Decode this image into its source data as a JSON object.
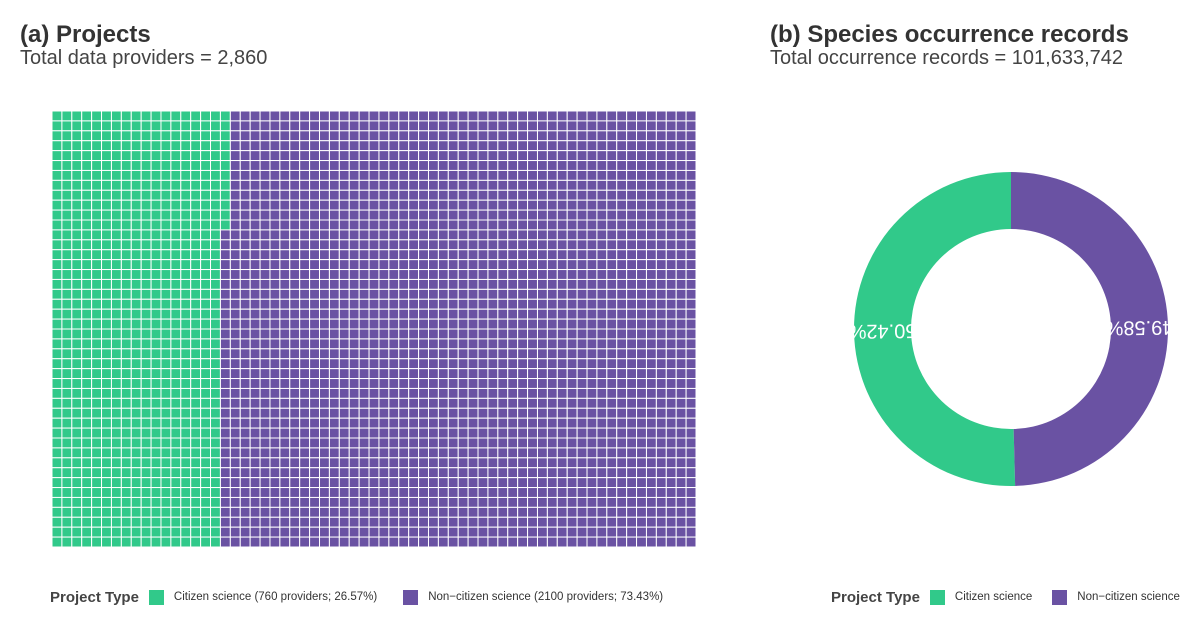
{
  "panel_a": {
    "title": "(a) Projects",
    "subtitle": "Total data providers = 2,860"
  },
  "panel_b": {
    "title": "(b) Species occurrence records",
    "subtitle": "Total occurrence records = 101,633,742"
  },
  "colors": {
    "citizen": "#31c98a",
    "non_citizen": "#6a52a3",
    "tile_border": "#ffffff"
  },
  "legend_a": {
    "title": "Project Type",
    "citizen_label": "Citizen science (760 providers; 26.57%)",
    "non_citizen_label": "Non−citizen science (2100 providers; 73.43%)"
  },
  "legend_b": {
    "title": "Project Type",
    "citizen_label": "Citizen science",
    "non_citizen_label": "Non−citizen science"
  },
  "chart_data": [
    {
      "type": "waffle",
      "title": "(a) Projects",
      "subtitle": "Total data providers = 2,860",
      "grid_rows": 44,
      "grid_cols": 65,
      "fill_order": "column-major from top-left",
      "categories": [
        "Citizen science",
        "Non−citizen science"
      ],
      "values": [
        760,
        2100
      ],
      "percentages": [
        26.57,
        73.43
      ],
      "total": 2860
    },
    {
      "type": "donut",
      "title": "(b) Species occurrence records",
      "subtitle": "Total occurrence records = 101,633,742",
      "categories": [
        "Citizen science",
        "Non−citizen science"
      ],
      "values": [
        50.42,
        49.58
      ],
      "labels": [
        "50.42%",
        "49.58%"
      ],
      "total": 101633742,
      "start": "12 o'clock",
      "direction": "Non−citizen science clockwise from top, Citizen science counter−clockwise"
    }
  ]
}
